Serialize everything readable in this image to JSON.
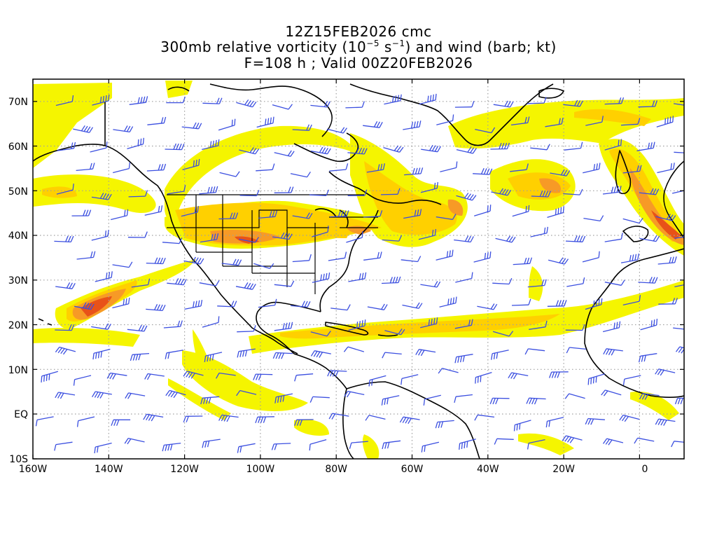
{
  "title": {
    "line1": "12Z15FEB2026 cmc",
    "line2_prefix": "300mb relative vorticity (10",
    "line2_exp1": "−5",
    "line2_mid": " s",
    "line2_exp2": "−1",
    "line2_suffix": ") and wind (barb; kt)",
    "line3": "F=108 h ; Valid 00Z20FEB2026"
  },
  "axes": {
    "x_ticks": [
      "160W",
      "140W",
      "120W",
      "100W",
      "80W",
      "60W",
      "40W",
      "20W",
      "0"
    ],
    "y_ticks": [
      "70N",
      "60N",
      "50N",
      "40N",
      "30N",
      "20N",
      "10N",
      "EQ",
      "10S"
    ]
  },
  "colors": {
    "shade_light": "#f5f500",
    "shade_mid": "#ffd000",
    "shade_orange": "#f79a26",
    "shade_dark": "#e85218",
    "barb": "#3b4fe0",
    "coast": "#000000",
    "grid": "#a0a0a0"
  }
}
